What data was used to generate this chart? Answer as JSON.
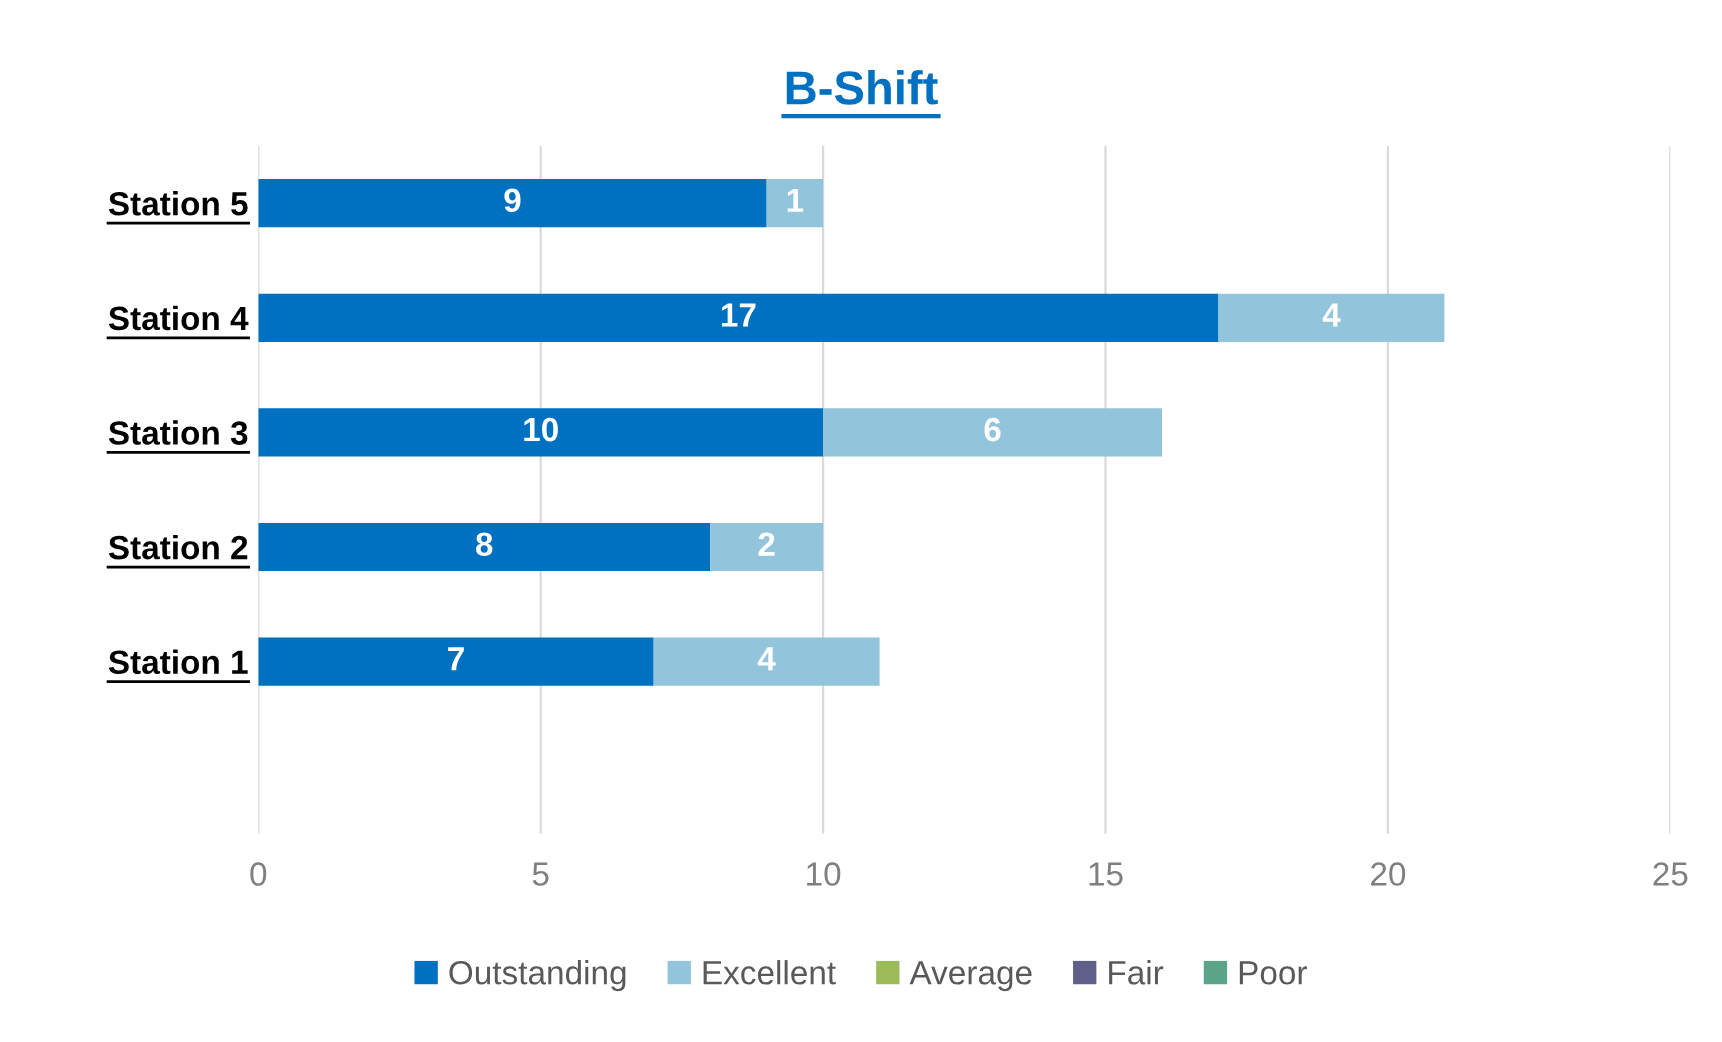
{
  "chart_data": {
    "type": "bar",
    "orientation": "horizontal",
    "stacked": true,
    "title": "B-Shift",
    "categories": [
      "Station 5",
      "Station 4",
      "Station 3",
      "Station 2",
      "Station 1",
      null
    ],
    "series": [
      {
        "name": "Outstanding",
        "color": "#0070c0",
        "values": [
          9,
          17,
          10,
          8,
          7,
          null
        ]
      },
      {
        "name": "Excellent",
        "color": "#92c5dc",
        "values": [
          1,
          4,
          6,
          2,
          4,
          null
        ]
      },
      {
        "name": "Average",
        "color": "#9bbb59",
        "values": [
          null,
          null,
          null,
          null,
          null,
          null
        ]
      },
      {
        "name": "Fair",
        "color": "#5f5f8a",
        "values": [
          null,
          null,
          null,
          null,
          null,
          null
        ]
      },
      {
        "name": "Poor",
        "color": "#5aa58a",
        "values": [
          null,
          null,
          null,
          null,
          null,
          null
        ]
      }
    ],
    "xlim": [
      0,
      25
    ],
    "xticks": [
      0,
      5,
      10,
      15,
      20,
      25
    ],
    "grid": "x",
    "legend": "bottom",
    "data_labels": true
  }
}
